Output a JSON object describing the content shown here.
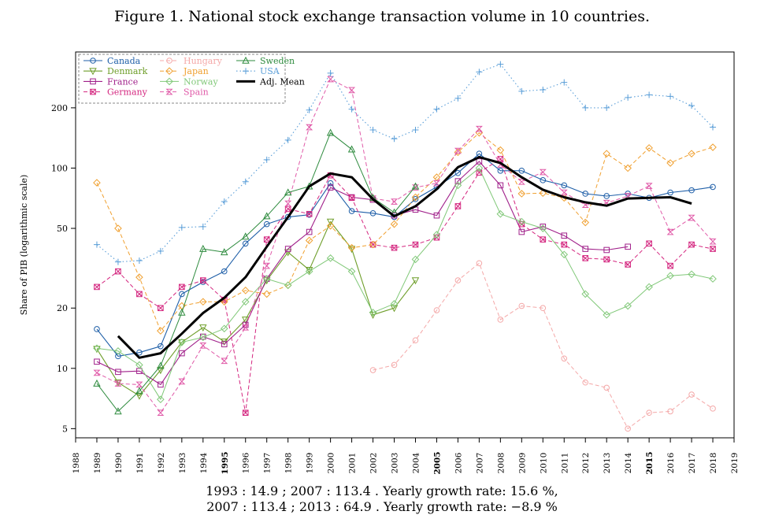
{
  "figure_title": "Figure 1. National stock exchange transaction volume in 10 countries.",
  "caption_line1": "1993 : 14.9  ; 2007 : 113.4  . Yearly growth rate: 15.6 %,",
  "caption_line2": "2007 : 113.4  ; 2013 : 64.9  . Yearly growth rate: −8.9 %",
  "chart_data": {
    "type": "line",
    "title": "Figure 1. National stock exchange transaction volume in 10 countries.",
    "ylabel": "Share of PIB (logarithmic scale)",
    "xlabel": "",
    "y_scale": "log",
    "xlim": [
      1988,
      2019
    ],
    "ylim": [
      4.5,
      380
    ],
    "y_ticks": [
      5,
      10,
      20,
      50,
      100,
      200
    ],
    "x_ticks": [
      1988,
      1989,
      1990,
      1991,
      1992,
      1993,
      1994,
      1995,
      1996,
      1997,
      1998,
      1999,
      2000,
      2001,
      2002,
      2003,
      2004,
      2005,
      2006,
      2007,
      2008,
      2009,
      2010,
      2011,
      2012,
      2013,
      2014,
      2015,
      2016,
      2017,
      2018,
      2019
    ],
    "bold_x_ticks": [
      1995,
      2005,
      2015
    ],
    "legend_position": "top-left",
    "grid": false,
    "series": [
      {
        "name": "Canada",
        "color": "#1f5fa8",
        "dash": "solid",
        "marker": "circle",
        "width": 1.1,
        "x": [
          1989,
          1990,
          1991,
          1992,
          1993,
          1994,
          1995,
          1996,
          1997,
          1998,
          1999,
          2000,
          2001,
          2002,
          2003,
          2004,
          2005,
          2006,
          2007,
          2008,
          2009,
          2010,
          2011,
          2012,
          2013,
          2014,
          2015,
          2016,
          2017,
          2018
        ],
        "y": [
          15.7,
          11.5,
          12.0,
          12.9,
          23.5,
          27.0,
          30.5,
          42.0,
          52.5,
          57.0,
          58.5,
          84.0,
          61.0,
          59.5,
          57.0,
          70.0,
          80.5,
          94.5,
          118.0,
          97.0,
          97.0,
          87.0,
          82.0,
          74.5,
          72.5,
          74.5,
          71.0,
          75.5,
          77.5,
          80.5
        ]
      },
      {
        "name": "Denmark",
        "color": "#6e9e2a",
        "dash": "solid",
        "marker": "triangle-down",
        "width": 1.1,
        "x": [
          1989,
          1990,
          1991,
          1992,
          1993,
          1994,
          1995,
          1996,
          1997,
          1998,
          1999,
          2000,
          2001,
          2002,
          2003,
          2004
        ],
        "y": [
          12.5,
          8.5,
          7.3,
          9.8,
          13.5,
          16.0,
          13.6,
          17.5,
          27.5,
          38.0,
          31.0,
          54.0,
          39.5,
          18.5,
          20.0,
          27.5
        ]
      },
      {
        "name": "France",
        "color": "#a0208a",
        "dash": "solid",
        "marker": "square",
        "width": 1.1,
        "x": [
          1989,
          1990,
          1991,
          1992,
          1993,
          1994,
          1995,
          1996,
          1997,
          1998,
          1999,
          2000,
          2001,
          2002,
          2003,
          2004,
          2005,
          2006,
          2007,
          2008,
          2009,
          2010,
          2011,
          2012,
          2013,
          2014
        ],
        "y": [
          10.8,
          9.6,
          9.7,
          8.3,
          11.9,
          14.4,
          13.2,
          16.5,
          28.0,
          39.5,
          48.0,
          80.0,
          71.5,
          69.5,
          58.0,
          62.0,
          58.0,
          86.0,
          108.0,
          82.0,
          48.0,
          51.0,
          46.0,
          39.5,
          39.0,
          40.5
        ]
      },
      {
        "name": "Germany",
        "color": "#d4267f",
        "dash": "dashed",
        "marker": "square-x",
        "width": 1.0,
        "x": [
          1989,
          1990,
          1991,
          1992,
          1993,
          1994,
          1995,
          1996,
          1997,
          1998,
          1999,
          2000,
          2001,
          2002,
          2003,
          2004,
          2005,
          2006,
          2007,
          2008,
          2009,
          2010,
          2011,
          2012,
          2013,
          2014,
          2015,
          2016,
          2017,
          2018
        ],
        "y": [
          25.5,
          30.5,
          23.5,
          20.0,
          25.5,
          27.5,
          22.0,
          6.0,
          44.0,
          62.5,
          59.0,
          92.0,
          71.0,
          41.5,
          40.0,
          41.5,
          45.0,
          64.5,
          95.0,
          111.0,
          52.5,
          44.0,
          41.5,
          35.5,
          35.0,
          33.0,
          42.0,
          32.5,
          41.5,
          39.5
        ]
      },
      {
        "name": "Hungary",
        "color": "#f4a8a8",
        "dash": "dashed",
        "marker": "circle",
        "width": 1.0,
        "x": [
          2002,
          2003,
          2004,
          2005,
          2006,
          2007,
          2008,
          2009,
          2010,
          2011,
          2012,
          2013,
          2014,
          2015,
          2016,
          2017,
          2018
        ],
        "y": [
          9.8,
          10.4,
          13.8,
          19.5,
          27.5,
          33.5,
          17.5,
          20.5,
          20.0,
          11.2,
          8.5,
          8.0,
          5.0,
          6.0,
          6.1,
          7.4,
          6.3
        ]
      },
      {
        "name": "Japan",
        "color": "#f0a030",
        "dash": "dashed",
        "marker": "diamond",
        "width": 1.0,
        "x": [
          1989,
          1990,
          1991,
          1992,
          1993,
          1994,
          1995,
          1996,
          1997,
          1998,
          1999,
          2000,
          2001,
          2002,
          2003,
          2004,
          2005,
          2006,
          2007,
          2008,
          2009,
          2010,
          2011,
          2012,
          2013,
          2014,
          2015,
          2016,
          2017,
          2018
        ],
        "y": [
          84.5,
          50.0,
          28.5,
          15.4,
          20.5,
          21.5,
          21.5,
          24.5,
          23.5,
          26.0,
          43.5,
          51.5,
          40.0,
          41.5,
          52.5,
          71.5,
          90.0,
          120.0,
          150.0,
          123.0,
          74.5,
          75.0,
          71.0,
          53.5,
          118.0,
          100.0,
          126.0,
          106.0,
          118.0,
          127.0
        ]
      },
      {
        "name": "Norway",
        "color": "#80c878",
        "dash": "solid",
        "marker": "diamond",
        "width": 1.0,
        "x": [
          1989,
          1990,
          1991,
          1992,
          1993,
          1994,
          1995,
          1996,
          1997,
          1998,
          1999,
          2000,
          2001,
          2002,
          2003,
          2004,
          2005,
          2006,
          2007,
          2008,
          2009,
          2010,
          2011,
          2012,
          2013,
          2014,
          2015,
          2016,
          2017,
          2018
        ],
        "y": [
          12.6,
          12.2,
          10.4,
          7.0,
          13.5,
          14.3,
          15.8,
          21.5,
          28.0,
          26.0,
          30.5,
          35.5,
          30.5,
          19.0,
          21.0,
          35.0,
          46.5,
          82.0,
          100.0,
          59.0,
          54.0,
          50.0,
          37.0,
          23.5,
          18.5,
          20.5,
          25.5,
          29.0,
          29.5,
          28.0
        ]
      },
      {
        "name": "Spain",
        "color": "#e05aa8",
        "dash": "dashed",
        "marker": "hourglass",
        "width": 1.0,
        "x": [
          1989,
          1990,
          1991,
          1992,
          1993,
          1994,
          1995,
          1996,
          1997,
          1998,
          1999,
          2000,
          2001,
          2002,
          2003,
          2004,
          2005,
          2006,
          2007,
          2008,
          2009,
          2010,
          2011,
          2012,
          2013,
          2014,
          2015,
          2016,
          2017,
          2018
        ],
        "y": [
          9.5,
          8.4,
          8.3,
          6.0,
          8.6,
          13.0,
          10.9,
          16.0,
          32.5,
          66.5,
          160.0,
          278.0,
          245.0,
          70.5,
          68.0,
          80.0,
          84.0,
          122.0,
          157.0,
          104.0,
          85.5,
          95.5,
          75.5,
          65.5,
          67.0,
          72.5,
          81.5,
          48.0,
          56.5,
          43.0
        ]
      },
      {
        "name": "Sweden",
        "color": "#2e8b3e",
        "dash": "solid",
        "marker": "triangle-up",
        "width": 1.0,
        "x": [
          1989,
          1990,
          1991,
          1992,
          1993,
          1994,
          1995,
          1996,
          1997,
          1998,
          1999,
          2000,
          2001,
          2002,
          2003,
          2004
        ],
        "y": [
          8.4,
          6.1,
          7.7,
          10.3,
          19.0,
          39.5,
          38.0,
          45.5,
          57.5,
          75.5,
          81.0,
          150.0,
          124.0,
          71.0,
          60.0,
          81.0
        ]
      },
      {
        "name": "USA",
        "color": "#5a9ed8",
        "dash": "dotted",
        "marker": "plus",
        "width": 1.1,
        "x": [
          1989,
          1990,
          1991,
          1992,
          1993,
          1994,
          1995,
          1996,
          1997,
          1998,
          1999,
          2000,
          2001,
          2002,
          2003,
          2004,
          2005,
          2006,
          2007,
          2008,
          2009,
          2010,
          2011,
          2012,
          2013,
          2014,
          2015,
          2016,
          2017,
          2018
        ],
        "y": [
          41.5,
          34.0,
          34.5,
          38.5,
          50.5,
          51.0,
          68.0,
          85.5,
          110.0,
          138.0,
          195.0,
          298.0,
          197.0,
          155.0,
          140.0,
          155.0,
          197.0,
          223.0,
          302.0,
          330.0,
          242.0,
          246.0,
          268.0,
          200.0,
          200.0,
          225.0,
          232.0,
          228.0,
          205.0,
          160.0
        ]
      },
      {
        "name": "Adj. Mean",
        "color": "#000000",
        "dash": "solid",
        "marker": "none",
        "width": 3.0,
        "x": [
          1990,
          1991,
          1992,
          1993,
          1994,
          1995,
          1996,
          1997,
          1998,
          1999,
          2000,
          2001,
          2002,
          2003,
          2004,
          2005,
          2006,
          2007,
          2008,
          2009,
          2010,
          2011,
          2012,
          2013,
          2014,
          2015,
          2016,
          2017
        ],
        "y": [
          14.5,
          11.3,
          11.9,
          14.9,
          18.9,
          22.5,
          28.5,
          40.5,
          57.0,
          81.0,
          94.0,
          90.0,
          70.0,
          57.5,
          64.5,
          78.5,
          101.0,
          113.4,
          106.0,
          90.0,
          78.0,
          71.5,
          67.5,
          64.9,
          70.5,
          71.0,
          71.5,
          66.5
        ]
      }
    ]
  }
}
